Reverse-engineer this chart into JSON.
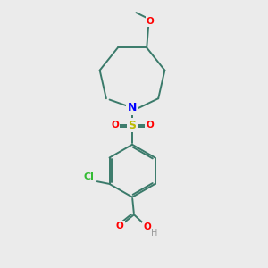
{
  "bg": "#ebebeb",
  "bond_color": "#3a7a6a",
  "colors": {
    "O": "#ff0000",
    "N": "#0000ff",
    "S": "#bbbb00",
    "Cl": "#33bb33",
    "H": "#999999"
  },
  "lw": 1.4,
  "fs": 7.5,
  "figsize": [
    3.0,
    3.0
  ],
  "dpi": 100
}
